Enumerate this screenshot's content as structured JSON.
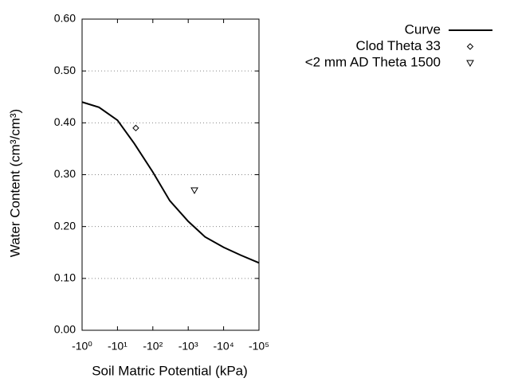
{
  "chart_data": {
    "type": "line",
    "xlabel": "Soil Matric Potential (kPa)",
    "ylabel": "Water Content (cm³/cm³)",
    "xscale": "log",
    "xlim": [
      -1,
      -100000
    ],
    "xticks": [
      {
        "value": -1,
        "label": "-10⁰"
      },
      {
        "value": -10,
        "label": "-10¹"
      },
      {
        "value": -100,
        "label": "-10²"
      },
      {
        "value": -1000,
        "label": "-10³"
      },
      {
        "value": -10000,
        "label": "-10⁴"
      },
      {
        "value": -100000,
        "label": "-10⁵"
      }
    ],
    "ylim": [
      0,
      0.6
    ],
    "yticks": [
      {
        "value": 0,
        "label": "0.00"
      },
      {
        "value": 0.1,
        "label": "0.10"
      },
      {
        "value": 0.2,
        "label": "0.20"
      },
      {
        "value": 0.3,
        "label": "0.30"
      },
      {
        "value": 0.4,
        "label": "0.40"
      },
      {
        "value": 0.5,
        "label": "0.50"
      },
      {
        "value": 0.6,
        "label": "0.60"
      }
    ],
    "grid": true,
    "legend": "top-right",
    "series": [
      {
        "name": "Curve",
        "type": "line",
        "color": "#000000",
        "x": [
          -1,
          -3,
          -10,
          -30,
          -100,
          -300,
          -1000,
          -3000,
          -10000,
          -30000,
          -100000
        ],
        "values": [
          0.44,
          0.43,
          0.405,
          0.36,
          0.305,
          0.25,
          0.21,
          0.18,
          0.16,
          0.145,
          0.13
        ]
      },
      {
        "name": "Clod Theta 33",
        "type": "scatter",
        "marker": "diamond",
        "color": "#000000",
        "x": [
          -33
        ],
        "values": [
          0.39
        ]
      },
      {
        "name": "<2 mm AD Theta 1500",
        "type": "scatter",
        "marker": "triangle-down",
        "color": "#000000",
        "x": [
          -1500
        ],
        "values": [
          0.27
        ]
      }
    ]
  }
}
